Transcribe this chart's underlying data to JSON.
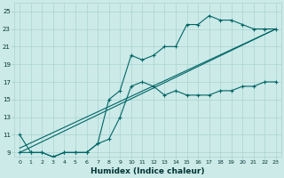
{
  "bg_color": "#cceae8",
  "grid_color": "#aad4d0",
  "line_color": "#006666",
  "xlabel": "Humidex (Indice chaleur)",
  "xlim": [
    -0.5,
    23.5
  ],
  "ylim": [
    8.5,
    26.0
  ],
  "xticks": [
    0,
    1,
    2,
    3,
    4,
    5,
    6,
    7,
    8,
    9,
    10,
    11,
    12,
    13,
    14,
    15,
    16,
    17,
    18,
    19,
    20,
    21,
    22,
    23
  ],
  "yticks": [
    9,
    11,
    13,
    15,
    17,
    19,
    21,
    23,
    25
  ],
  "series1_x": [
    0,
    1,
    2,
    3,
    4,
    5,
    6,
    7,
    8,
    9,
    10,
    11,
    12,
    13,
    14,
    15,
    16,
    17,
    18,
    19,
    20,
    21,
    22,
    23
  ],
  "series1_y": [
    11,
    9,
    9,
    8.5,
    9,
    9,
    9,
    10,
    10.5,
    13,
    16.5,
    17,
    16.5,
    15.5,
    16,
    15.5,
    15.5,
    15.5,
    16,
    16,
    16.5,
    16.5,
    17,
    17
  ],
  "series2_x": [
    0,
    1,
    2,
    3,
    4,
    5,
    6,
    7,
    8,
    9,
    10,
    11,
    12,
    13,
    14,
    15,
    16,
    17,
    18,
    19,
    20,
    21,
    22,
    23
  ],
  "series2_y": [
    9,
    9,
    9,
    8.5,
    9,
    9,
    9,
    10,
    15,
    16,
    20,
    19.5,
    20,
    21,
    21,
    23.5,
    23.5,
    24.5,
    24,
    24,
    23.5,
    23,
    23,
    23
  ],
  "series3_x": [
    0,
    23
  ],
  "series3_y": [
    9,
    23
  ],
  "series4_x": [
    0,
    23
  ],
  "series4_y": [
    9,
    23
  ]
}
